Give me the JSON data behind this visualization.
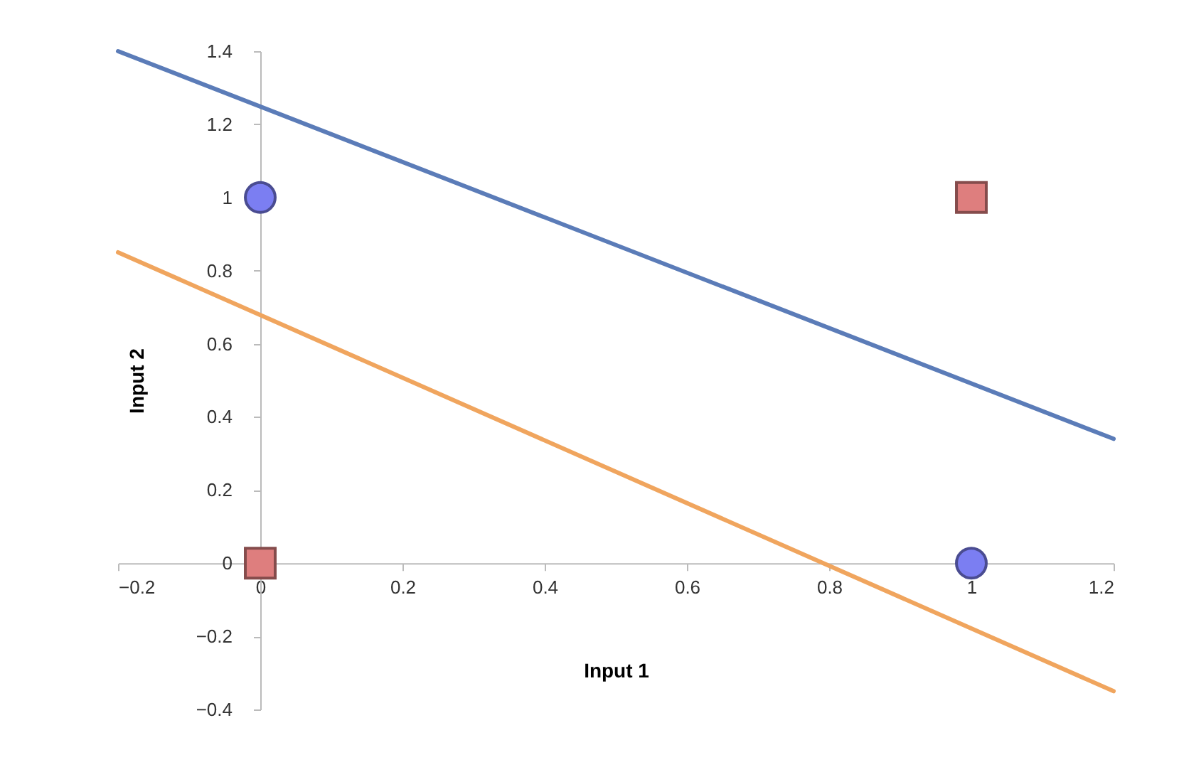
{
  "chart_data": {
    "type": "scatter",
    "xlabel": "Input 1",
    "ylabel": "Input 2",
    "xlim": [
      -0.2,
      1.2
    ],
    "ylim": [
      -0.4,
      1.4
    ],
    "xticks": [
      -0.2,
      0,
      0.2,
      0.4,
      0.6,
      0.8,
      1,
      1.2
    ],
    "yticks": [
      -0.4,
      -0.2,
      0,
      0.2,
      0.4,
      0.6,
      0.8,
      1,
      1.2,
      1.4
    ],
    "grid": false,
    "series": [
      {
        "type": "line",
        "color": "#5b7cb8",
        "x": [
          -0.2,
          1.2
        ],
        "values": [
          1.4,
          0.34
        ],
        "marker": "none",
        "line_style": "solid"
      },
      {
        "type": "line",
        "color": "#f0a55e",
        "x": [
          -0.2,
          1.2
        ],
        "values": [
          0.85,
          -0.35
        ],
        "marker": "none",
        "line_style": "solid"
      },
      {
        "type": "scatter",
        "color": "#7b7ef2",
        "x": [
          0,
          1
        ],
        "values": [
          1,
          0
        ],
        "marker": "circle"
      },
      {
        "type": "scatter",
        "color": "#de7e7e",
        "x": [
          0,
          1
        ],
        "values": [
          0,
          1
        ],
        "marker": "square"
      }
    ]
  }
}
